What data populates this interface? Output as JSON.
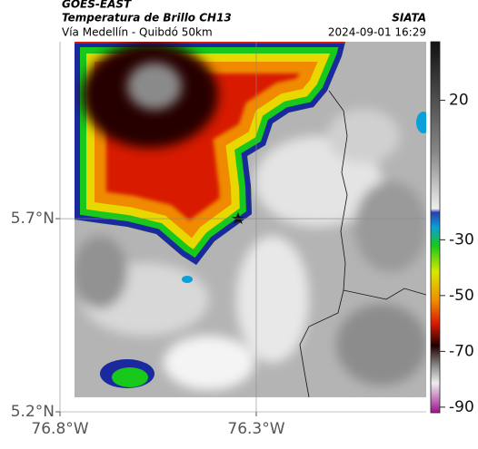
{
  "chart_data": {
    "type": "map",
    "supertitle": "GOES-EAST",
    "title": "Temperatura de Brillo CH13",
    "subtitle": "Vía Medellín - Quibdó 50km",
    "source": "SIATA",
    "timestamp": "2024-09-01 16:29",
    "xlim": [
      -76.8,
      -75.867
    ],
    "ylim": [
      5.2,
      6.158
    ],
    "xticks": [
      {
        "value": -76.8,
        "label": "76.8°W"
      },
      {
        "value": -76.3,
        "label": "76.3°W"
      }
    ],
    "yticks": [
      {
        "value": 5.7,
        "label": "5.7°N"
      },
      {
        "value": 5.2,
        "label": "5.2°N"
      }
    ],
    "grid": true,
    "colorbar": {
      "lim": [
        -92,
        41
      ],
      "ticks": [
        20,
        -30,
        -50,
        -70,
        -90
      ]
    }
  }
}
